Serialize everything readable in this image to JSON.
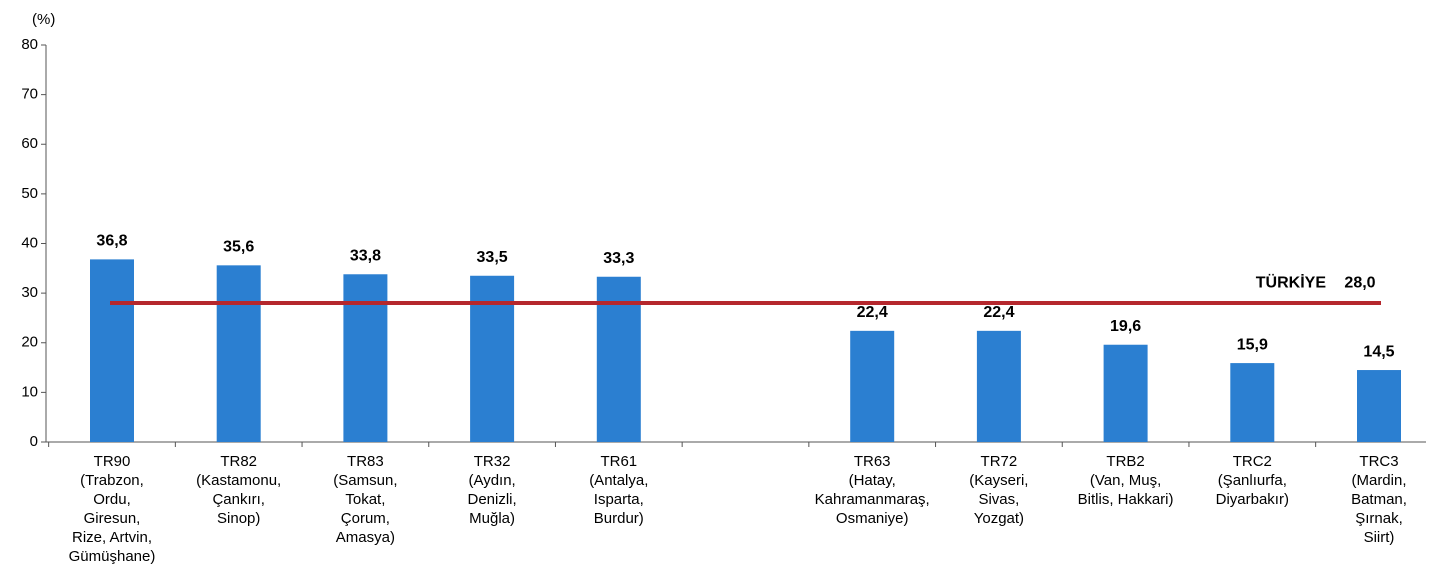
{
  "chart_data": {
    "type": "bar",
    "y_axis_label": "(%)",
    "categories": [
      [
        "TR90",
        "(Trabzon,",
        "Ordu,",
        "Giresun,",
        "Rize, Artvin,",
        "Gümüşhane)"
      ],
      [
        "TR82",
        "(Kastamonu,",
        "Çankırı,",
        "Sinop)"
      ],
      [
        "TR83",
        "(Samsun,",
        "Tokat,",
        "Çorum,",
        "Amasya)"
      ],
      [
        "TR32",
        "(Aydın,",
        "Denizli,",
        "Muğla)"
      ],
      [
        "TR61",
        "(Antalya,",
        "Isparta,",
        "Burdur)"
      ],
      null,
      [
        "TR63",
        "(Hatay,",
        "Kahramanmaraş,",
        "Osmaniye)"
      ],
      [
        "TR72",
        "(Kayseri,",
        "Sivas,",
        "Yozgat)"
      ],
      [
        "TRB2",
        "(Van, Muş,",
        "Bitlis, Hakkari)"
      ],
      [
        "TRC2",
        "(Şanlıurfa,",
        "Diyarbakır)"
      ],
      [
        "TRC3",
        "(Mardin,",
        "Batman,",
        "Şırnak,",
        "Siirt)"
      ]
    ],
    "values": [
      36.8,
      35.6,
      33.8,
      33.5,
      33.3,
      null,
      22.4,
      22.4,
      19.6,
      15.9,
      14.5
    ],
    "value_labels": [
      "36,8",
      "35,6",
      "33,8",
      "33,5",
      "33,3",
      null,
      "22,4",
      "22,4",
      "19,6",
      "15,9",
      "14,5"
    ],
    "color": "#2b7fd1",
    "reference_line": {
      "label": "TÜRKİYE",
      "value": 28,
      "value_label": "28,0",
      "color": "#b5272d"
    },
    "ylim": [
      0,
      80
    ],
    "yticks": [
      0,
      10,
      20,
      30,
      40,
      50,
      60,
      70,
      80
    ],
    "grid": false
  }
}
